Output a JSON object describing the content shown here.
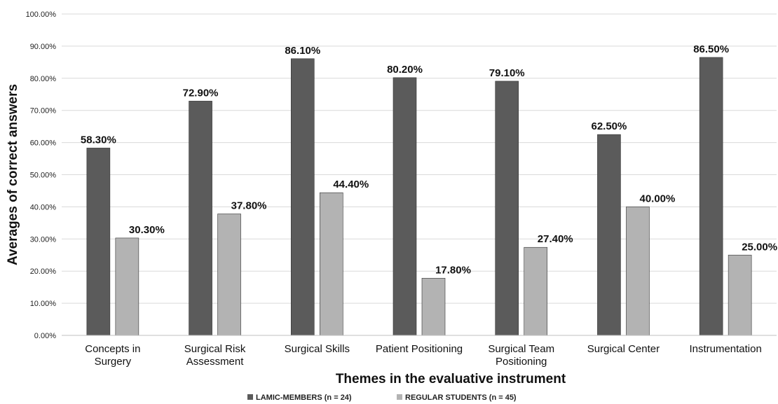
{
  "chart_data": {
    "type": "bar",
    "title": "",
    "xlabel": "Themes in the evaluative instrument",
    "ylabel": "Averages of correct answers",
    "ylim": [
      0,
      100
    ],
    "y_ticks": [
      0,
      10,
      20,
      30,
      40,
      50,
      60,
      70,
      80,
      90,
      100
    ],
    "y_tick_labels": [
      "0.00%",
      "10.00%",
      "20.00%",
      "30.00%",
      "40.00%",
      "50.00%",
      "60.00%",
      "70.00%",
      "80.00%",
      "90.00%",
      "100.00%"
    ],
    "grid": true,
    "legend_position": "bottom",
    "categories": [
      [
        "Concepts in",
        "Surgery"
      ],
      [
        "Surgical Risk",
        "Assessment"
      ],
      [
        "Surgical Skills"
      ],
      [
        "Patient Positioning"
      ],
      [
        "Surgical Team",
        "Positioning"
      ],
      [
        "Surgical Center"
      ],
      [
        "Instrumentation"
      ]
    ],
    "series": [
      {
        "name": "LAMIC-MEMBERS (n = 24)",
        "color": "#5b5b5b",
        "values": [
          58.3,
          72.9,
          86.1,
          80.2,
          79.1,
          62.5,
          86.5
        ],
        "labels": [
          "58.30%",
          "72.90%",
          "86.10%",
          "80.20%",
          "79.10%",
          "62.50%",
          "86.50%"
        ]
      },
      {
        "name": "REGULAR STUDENTS (n = 45)",
        "color": "#b3b3b3",
        "values": [
          30.3,
          37.8,
          44.4,
          17.8,
          27.4,
          40.0,
          25.0
        ],
        "labels": [
          "30.30%",
          "37.80%",
          "44.40%",
          "17.80%",
          "27.40%",
          "40.00%",
          "25.00%"
        ]
      }
    ]
  }
}
